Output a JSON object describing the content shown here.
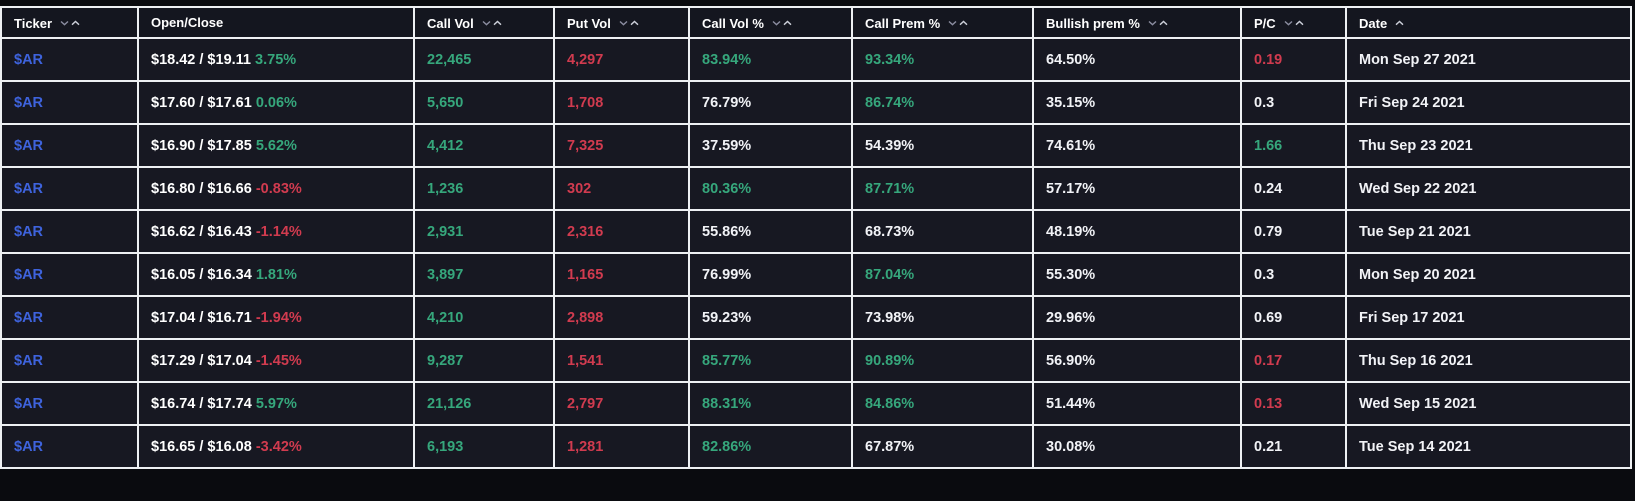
{
  "colors": {
    "green": "#36a77c",
    "red": "#d13b4f",
    "blue": "#3e63dd",
    "white": "#f2f3f7",
    "row_bg": "#171822",
    "grid_line": "#eef0f3",
    "page_bg": "#0a0b0f"
  },
  "table": {
    "columns": [
      {
        "label": "Ticker",
        "key": "ticker",
        "sort": "both"
      },
      {
        "label": "Open/Close",
        "key": "open_close",
        "sort": "none"
      },
      {
        "label": "Call Vol",
        "key": "call_vol",
        "sort": "both"
      },
      {
        "label": "Put Vol",
        "key": "put_vol",
        "sort": "both"
      },
      {
        "label": "Call Vol %",
        "key": "call_vol_pct",
        "sort": "both"
      },
      {
        "label": "Call Prem %",
        "key": "call_prem_pct",
        "sort": "both"
      },
      {
        "label": "Bullish prem %",
        "key": "bullish_prem_pct",
        "sort": "both"
      },
      {
        "label": "P/C",
        "key": "pc",
        "sort": "both"
      },
      {
        "label": "Date",
        "key": "date",
        "sort": "asc"
      }
    ],
    "rows": [
      {
        "ticker": "$AR",
        "open_close": {
          "prices": "$18.42 / $19.11",
          "change": "3.75%",
          "change_color": "green"
        },
        "call_vol": "22,465",
        "put_vol": "4,297",
        "call_vol_pct": {
          "text": "83.94%",
          "color": "green"
        },
        "call_prem_pct": {
          "text": "93.34%",
          "color": "green"
        },
        "bullish_prem_pct": "64.50%",
        "pc": {
          "text": "0.19",
          "color": "red"
        },
        "date": "Mon Sep 27 2021"
      },
      {
        "ticker": "$AR",
        "open_close": {
          "prices": "$17.60 / $17.61",
          "change": "0.06%",
          "change_color": "green"
        },
        "call_vol": "5,650",
        "put_vol": "1,708",
        "call_vol_pct": {
          "text": "76.79%",
          "color": "white"
        },
        "call_prem_pct": {
          "text": "86.74%",
          "color": "green"
        },
        "bullish_prem_pct": "35.15%",
        "pc": {
          "text": "0.3",
          "color": "white"
        },
        "date": "Fri Sep 24 2021"
      },
      {
        "ticker": "$AR",
        "open_close": {
          "prices": "$16.90 / $17.85",
          "change": "5.62%",
          "change_color": "green"
        },
        "call_vol": "4,412",
        "put_vol": "7,325",
        "call_vol_pct": {
          "text": "37.59%",
          "color": "white"
        },
        "call_prem_pct": {
          "text": "54.39%",
          "color": "white"
        },
        "bullish_prem_pct": "74.61%",
        "pc": {
          "text": "1.66",
          "color": "green"
        },
        "date": "Thu Sep 23 2021"
      },
      {
        "ticker": "$AR",
        "open_close": {
          "prices": "$16.80 / $16.66",
          "change": "-0.83%",
          "change_color": "red"
        },
        "call_vol": "1,236",
        "put_vol": "302",
        "call_vol_pct": {
          "text": "80.36%",
          "color": "green"
        },
        "call_prem_pct": {
          "text": "87.71%",
          "color": "green"
        },
        "bullish_prem_pct": "57.17%",
        "pc": {
          "text": "0.24",
          "color": "white"
        },
        "date": "Wed Sep 22 2021"
      },
      {
        "ticker": "$AR",
        "open_close": {
          "prices": "$16.62 / $16.43",
          "change": "-1.14%",
          "change_color": "red"
        },
        "call_vol": "2,931",
        "put_vol": "2,316",
        "call_vol_pct": {
          "text": "55.86%",
          "color": "white"
        },
        "call_prem_pct": {
          "text": "68.73%",
          "color": "white"
        },
        "bullish_prem_pct": "48.19%",
        "pc": {
          "text": "0.79",
          "color": "white"
        },
        "date": "Tue Sep 21 2021"
      },
      {
        "ticker": "$AR",
        "open_close": {
          "prices": "$16.05 / $16.34",
          "change": "1.81%",
          "change_color": "green"
        },
        "call_vol": "3,897",
        "put_vol": "1,165",
        "call_vol_pct": {
          "text": "76.99%",
          "color": "white"
        },
        "call_prem_pct": {
          "text": "87.04%",
          "color": "green"
        },
        "bullish_prem_pct": "55.30%",
        "pc": {
          "text": "0.3",
          "color": "white"
        },
        "date": "Mon Sep 20 2021"
      },
      {
        "ticker": "$AR",
        "open_close": {
          "prices": "$17.04 / $16.71",
          "change": "-1.94%",
          "change_color": "red"
        },
        "call_vol": "4,210",
        "put_vol": "2,898",
        "call_vol_pct": {
          "text": "59.23%",
          "color": "white"
        },
        "call_prem_pct": {
          "text": "73.98%",
          "color": "white"
        },
        "bullish_prem_pct": "29.96%",
        "pc": {
          "text": "0.69",
          "color": "white"
        },
        "date": "Fri Sep 17 2021"
      },
      {
        "ticker": "$AR",
        "open_close": {
          "prices": "$17.29 / $17.04",
          "change": "-1.45%",
          "change_color": "red"
        },
        "call_vol": "9,287",
        "put_vol": "1,541",
        "call_vol_pct": {
          "text": "85.77%",
          "color": "green"
        },
        "call_prem_pct": {
          "text": "90.89%",
          "color": "green"
        },
        "bullish_prem_pct": "56.90%",
        "pc": {
          "text": "0.17",
          "color": "red"
        },
        "date": "Thu Sep 16 2021"
      },
      {
        "ticker": "$AR",
        "open_close": {
          "prices": "$16.74 / $17.74",
          "change": "5.97%",
          "change_color": "green"
        },
        "call_vol": "21,126",
        "put_vol": "2,797",
        "call_vol_pct": {
          "text": "88.31%",
          "color": "green"
        },
        "call_prem_pct": {
          "text": "84.86%",
          "color": "green"
        },
        "bullish_prem_pct": "51.44%",
        "pc": {
          "text": "0.13",
          "color": "red"
        },
        "date": "Wed Sep 15 2021"
      },
      {
        "ticker": "$AR",
        "open_close": {
          "prices": "$16.65 / $16.08",
          "change": "-3.42%",
          "change_color": "red"
        },
        "call_vol": "6,193",
        "put_vol": "1,281",
        "call_vol_pct": {
          "text": "82.86%",
          "color": "green"
        },
        "call_prem_pct": {
          "text": "67.87%",
          "color": "white"
        },
        "bullish_prem_pct": "30.08%",
        "pc": {
          "text": "0.21",
          "color": "white"
        },
        "date": "Tue Sep 14 2021"
      }
    ]
  }
}
